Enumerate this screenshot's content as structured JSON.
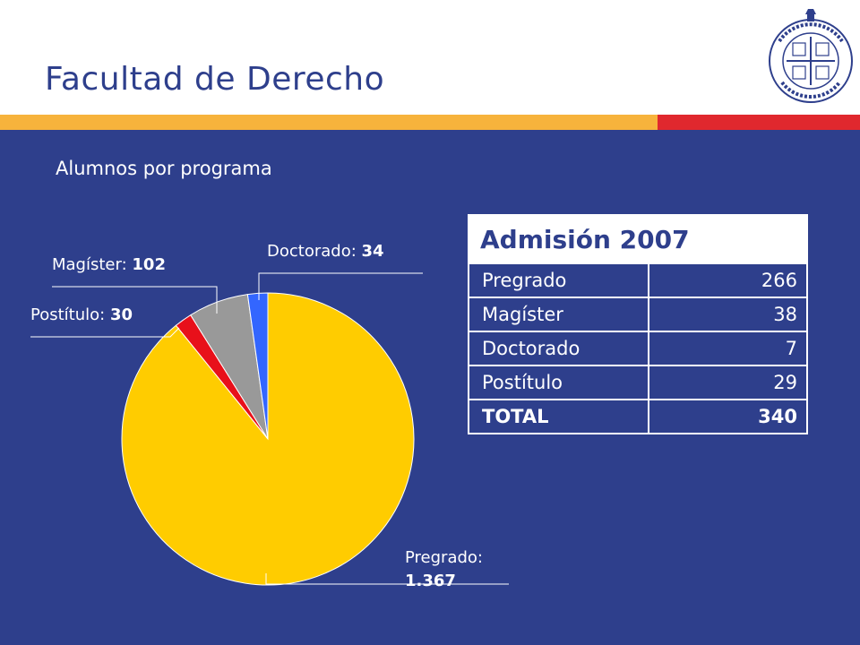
{
  "header": {
    "title": "Facultad de Derecho",
    "seal_text": "PONTIFICIA UNIVERSIDAD CATÓLICA DE CHILE"
  },
  "colors": {
    "background": "#2E3F8C",
    "band_orange": "#F7B33C",
    "band_red": "#E0282E",
    "text": "#FFFFFF"
  },
  "chart_data": {
    "type": "pie",
    "title": "Alumnos por programa",
    "categories": [
      "Pregrado",
      "Postítulo",
      "Magíster",
      "Doctorado"
    ],
    "values": [
      1367,
      30,
      102,
      34
    ],
    "display_values": [
      "1.367",
      "30",
      "102",
      "34"
    ],
    "colors": [
      "#FFCC00",
      "#E8101A",
      "#999999",
      "#3366FF"
    ],
    "start": "top",
    "direction": "clockwise"
  },
  "table": {
    "title": "Admisión 2007",
    "rows": [
      {
        "label": "Pregrado",
        "value": "266"
      },
      {
        "label": "Magíster",
        "value": "38"
      },
      {
        "label": "Doctorado",
        "value": "7"
      },
      {
        "label": "Postítulo",
        "value": "29"
      }
    ],
    "total": {
      "label": "TOTAL",
      "value": "340"
    }
  }
}
